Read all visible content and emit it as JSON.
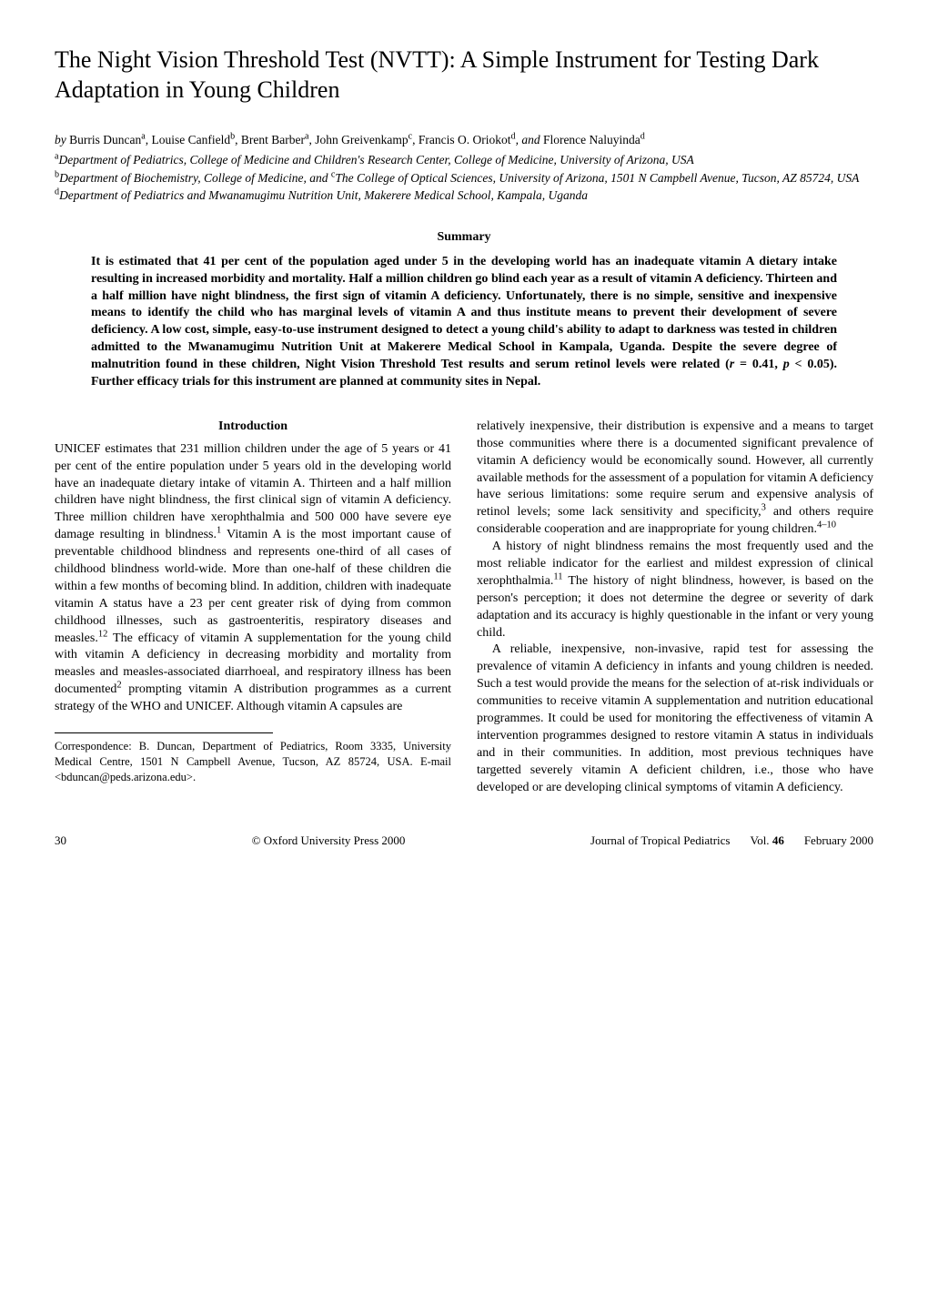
{
  "title": "The Night Vision Threshold Test (NVTT): A Simple Instrument for Testing Dark Adaptation in Young Children",
  "authors_line": {
    "by": "by",
    "a1": " Burris Duncan",
    "s1": "a",
    "a2": ", Louise Canfield",
    "s2": "b",
    "a3": ", Brent Barber",
    "s3": "a",
    "a4": ", John Greivenkamp",
    "s4": "c",
    "a5": ", Francis O. Oriokot",
    "s5": "d",
    "and": ", and",
    "a6": " Florence Naluyinda",
    "s6": "d"
  },
  "affiliations": {
    "a": {
      "sup": "a",
      "text": "Department of Pediatrics, College of Medicine and Children's Research Center, College of Medicine, University of Arizona, USA"
    },
    "b": {
      "sup": "b",
      "text_part1": "Department of Biochemistry, College of Medicine, and ",
      "sup2": "c",
      "text_part2": "The College of Optical Sciences, University of Arizona, 1501 N Campbell Avenue, Tucson, AZ 85724, USA"
    },
    "d": {
      "sup": "d",
      "text": "Department of Pediatrics and Mwanamugimu Nutrition Unit, Makerere Medical School, Kampala, Uganda"
    }
  },
  "summary_heading": "Summary",
  "abstract_parts": {
    "p1": "It is estimated that 41 per cent of the population aged under 5 in the developing world has an inadequate vitamin A dietary intake resulting in increased morbidity and mortality. Half a million children go blind each year as a result of vitamin A deficiency. Thirteen and a half million have night blindness, the first sign of vitamin A deficiency. Unfortunately, there is no simple, sensitive and inexpensive means to identify the child who has marginal levels of vitamin A and thus institute means to prevent their development of severe deficiency. A low cost, simple, easy-to-use instrument designed to detect a young child's ability to adapt to darkness was tested in children admitted to the Mwanamugimu Nutrition Unit at Makerere Medical School in Kampala, Uganda. Despite the severe degree of malnutrition found in these children, Night Vision Threshold Test results and serum retinol levels were related (",
    "ri": "r",
    "p2": " = 0.41, ",
    "pi": "p",
    "p3": " < 0.05). Further efficacy trials for this instrument are planned at community sites in Nepal."
  },
  "intro_heading": "Introduction",
  "left_col": {
    "para1a": "UNICEF estimates that 231 million children under the age of 5 years or 41 per cent of the entire population under 5 years old in the developing world have an inadequate dietary intake of vitamin A. Thirteen and a half million children have night blindness, the first clinical sign of vitamin A deficiency. Three million children have xerophthalmia and 500 000 have severe eye damage resulting in blindness.",
    "sup1": "1",
    "para1b": " Vitamin A is the most important cause of preventable childhood blindness and represents one-third of all cases of childhood blindness world-wide. More than one-half of these children die within a few months of becoming blind. In addition, children with inadequate vitamin A status have a 23 per cent greater risk of dying from common childhood illnesses, such as gastroenteritis, respiratory diseases and measles.",
    "sup12": "12",
    "para1c": " The efficacy of vitamin A supplementation for the young child with vitamin A deficiency in decreasing morbidity and mortality from measles and measles-associated diarrhoeal, and respiratory illness has been documented",
    "sup2": "2",
    "para1d": " prompting vitamin A distribution programmes as a current strategy of the WHO and UNICEF. Although vitamin A capsules are"
  },
  "correspondence": "Correspondence:  B. Duncan, Department of Pediatrics, Room 3335, University Medical Centre, 1501 N Campbell Avenue, Tucson, AZ 85724, USA. E-mail <bduncan@peds.arizona.edu>.",
  "right_col": {
    "para1a": "relatively inexpensive, their distribution is expensive and a means to target those communities where there is a documented significant prevalence of vitamin A deficiency would be economically sound. However, all currently available methods for the assessment of a population for vitamin A deficiency have serious limitations: some require serum and expensive analysis of retinol levels; some lack sensitivity and specificity,",
    "sup3": "3",
    "para1b": " and others require considerable cooperation and are inappropriate for young children.",
    "sup410": "4–10",
    "para2a": "A history of night blindness remains the most frequently used and the most reliable indicator for the earliest and mildest expression of clinical xerophthalmia.",
    "sup11": "11",
    "para2b": " The history of night blindness, however, is based on the person's perception; it does not determine the degree or severity of dark adaptation and its accuracy is highly questionable in the infant or very young child.",
    "para3": "A reliable, inexpensive, non-invasive, rapid test for assessing the prevalence of vitamin A deficiency in infants and young children is needed. Such a test would provide the means for the selection of at-risk individuals or communities to receive vitamin A supplementation and nutrition educational programmes. It could be used for monitoring the effectiveness of vitamin A intervention programmes designed to restore vitamin A status in individuals and in their communities. In addition, most previous techniques have targetted severely vitamin A deficient children, i.e., those who have developed or are developing clinical symptoms of vitamin A deficiency."
  },
  "footer": {
    "page": "30",
    "copyright": "© Oxford University Press 2000",
    "journal": "Journal of Tropical Pediatrics",
    "vol_label": "Vol. ",
    "vol_num": "46",
    "date": "February 2000"
  }
}
